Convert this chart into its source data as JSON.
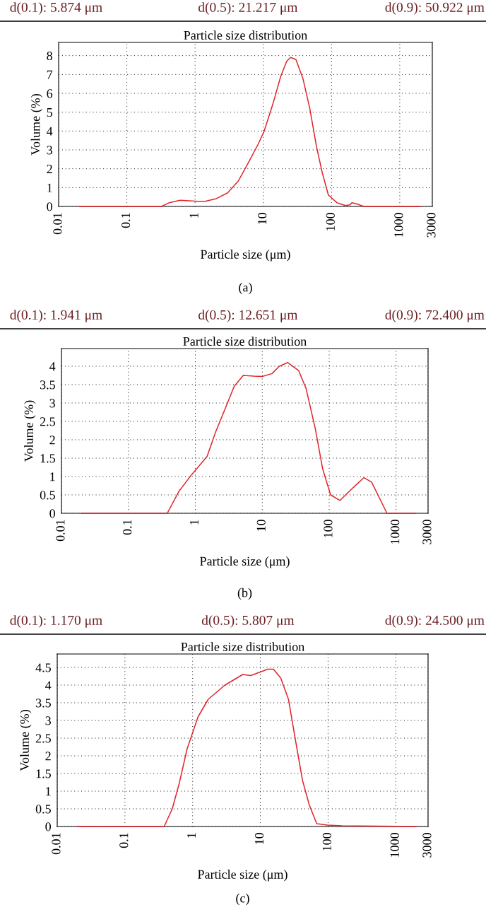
{
  "chart_data": [
    {
      "type": "line",
      "title": "Particle size distribution",
      "xlabel": "Particle size (μm)",
      "ylabel": "Volume (%)",
      "log": "x",
      "xlim": [
        0.01,
        3000
      ],
      "xticks": [
        0.01,
        0.1,
        1,
        10,
        100,
        1000,
        3000
      ],
      "ylim": [
        0,
        8.7
      ],
      "yticks": [
        0,
        1,
        2,
        3,
        4,
        5,
        6,
        7,
        8
      ],
      "grid": true,
      "line_style": "solid",
      "annotations": [
        "d(0.1): 5.874 μm",
        "d(0.5): 21.217 μm",
        "d(0.9): 50.922 μm",
        "(a)"
      ],
      "series": [
        {
          "color": "#e0262b",
          "x": [
            0.02,
            0.32,
            0.42,
            0.6,
            1.1,
            1.4,
            2,
            3,
            4.3,
            6,
            8.4,
            10.3,
            14,
            18,
            22,
            25,
            30,
            38,
            48,
            60,
            73,
            90,
            120,
            160,
            185,
            200,
            240,
            300,
            2000
          ],
          "values": [
            0,
            0,
            0.2,
            0.33,
            0.27,
            0.27,
            0.4,
            0.72,
            1.35,
            2.3,
            3.3,
            4.0,
            5.5,
            6.9,
            7.7,
            7.9,
            7.8,
            6.8,
            5.2,
            3.2,
            1.8,
            0.6,
            0.2,
            0.05,
            0.08,
            0.2,
            0.12,
            0,
            0
          ]
        }
      ]
    },
    {
      "type": "line",
      "title": "Particle size distribution",
      "xlabel": "Particle size (μm)",
      "ylabel": "Volume (%)",
      "log": "x",
      "xlim": [
        0.01,
        3000
      ],
      "xticks": [
        0.01,
        0.1,
        1,
        10,
        100,
        1000,
        3000
      ],
      "ylim": [
        0,
        4.48
      ],
      "yticks": [
        0,
        0.5,
        1,
        1.5,
        2,
        2.5,
        3,
        3.5,
        4
      ],
      "grid": true,
      "line_style": "solid",
      "annotations": [
        "d(0.1): 1.941 μm",
        "d(0.5): 12.651 μm",
        "d(0.9): 72.400 μm",
        "(b)"
      ],
      "series": [
        {
          "color": "#e0262b",
          "x": [
            0.02,
            0.38,
            0.57,
            0.88,
            1.5,
            2.0,
            2.8,
            3.8,
            5.2,
            7.5,
            10,
            14,
            18,
            24,
            35,
            45,
            62,
            80,
            105,
            145,
            200,
            330,
            430,
            730,
            1900
          ],
          "values": [
            0,
            0,
            0.6,
            1.05,
            1.55,
            2.2,
            2.85,
            3.45,
            3.75,
            3.73,
            3.72,
            3.8,
            4.0,
            4.1,
            3.88,
            3.4,
            2.3,
            1.2,
            0.5,
            0.35,
            0.6,
            0.97,
            0.85,
            0,
            0
          ]
        }
      ]
    },
    {
      "type": "line",
      "title": "Particle size distribution",
      "xlabel": "Particle size (μm)",
      "ylabel": "Volume (%)",
      "log": "x",
      "xlim": [
        0.01,
        3000
      ],
      "xticks": [
        0.01,
        0.1,
        1,
        10,
        100,
        1000,
        3000
      ],
      "ylim": [
        0,
        4.88
      ],
      "yticks": [
        0,
        0.5,
        1,
        1.5,
        2,
        2.5,
        3,
        3.5,
        4,
        4.5
      ],
      "grid": true,
      "line_style": "solid",
      "annotations": [
        "d(0.1): 1.170 μm",
        "d(0.5): 5.807 μm",
        "d(0.9): 24.500 μm",
        "(c)"
      ],
      "series": [
        {
          "color": "#e0262b",
          "x": [
            0.02,
            0.38,
            0.5,
            0.63,
            0.83,
            1.2,
            1.7,
            3.0,
            5.5,
            7.2,
            11,
            12.7,
            15.6,
            20,
            26,
            34,
            42,
            53,
            68,
            98,
            160,
            2000
          ],
          "values": [
            0,
            0,
            0.5,
            1.2,
            2.2,
            3.1,
            3.6,
            4.0,
            4.3,
            4.27,
            4.4,
            4.45,
            4.45,
            4.2,
            3.6,
            2.3,
            1.3,
            0.6,
            0.08,
            0.04,
            0.02,
            0
          ]
        }
      ]
    }
  ]
}
